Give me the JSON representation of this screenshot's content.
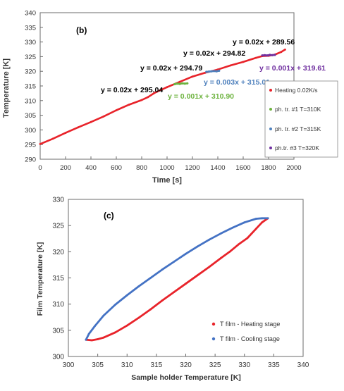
{
  "chart_data": [
    {
      "type": "line",
      "panel_label": "(b)",
      "xlabel": "Time [s]",
      "ylabel": "Temperature [K]",
      "xlim": [
        0,
        2000
      ],
      "ylim": [
        290,
        340
      ],
      "xticks": [
        0,
        200,
        400,
        600,
        800,
        1000,
        1200,
        1400,
        1600,
        1800,
        2000
      ],
      "yticks": [
        290,
        295,
        300,
        305,
        310,
        315,
        320,
        325,
        330,
        335,
        340
      ],
      "grid": false,
      "legend_position": "right",
      "series": [
        {
          "name": "Heating 0.02K/s",
          "color": "#e8232a",
          "x": [
            0,
            100,
            200,
            300,
            400,
            500,
            600,
            700,
            800,
            850,
            900,
            1000,
            1100,
            1200,
            1300,
            1400,
            1500,
            1600,
            1700,
            1750,
            1800,
            1850,
            1900,
            1930
          ],
          "y": [
            295.2,
            297.0,
            299.0,
            300.9,
            302.7,
            304.6,
            306.7,
            308.6,
            310.2,
            311.2,
            312.6,
            314.6,
            316.4,
            318.2,
            319.5,
            320.6,
            322.0,
            323.2,
            324.6,
            325.2,
            325.3,
            325.7,
            326.6,
            327.4
          ]
        },
        {
          "name": "ph. tr. #1 T=310K",
          "color": "#6db33f",
          "x": [
            1060,
            1080,
            1100,
            1120,
            1140,
            1160
          ],
          "y": [
            315.6,
            315.8,
            315.7,
            315.9,
            315.8,
            315.9
          ]
        },
        {
          "name": "ph. tr. #2 T=315K",
          "color": "#4f81bd",
          "x": [
            1310,
            1330,
            1350,
            1370,
            1390,
            1410
          ],
          "y": [
            319.8,
            319.9,
            320.0,
            320.1,
            320.0,
            320.2
          ]
        },
        {
          "name": "ph.tr. #3 T=320K",
          "color": "#7030a0",
          "x": [
            1750,
            1770,
            1790,
            1810,
            1830,
            1850
          ],
          "y": [
            325.4,
            325.5,
            325.4,
            325.6,
            325.5,
            325.6
          ]
        }
      ],
      "annotations": [
        {
          "text": "y = 0.02x + 295.04",
          "color": "#000000"
        },
        {
          "text": "y = 0.02x + 294.79",
          "color": "#000000"
        },
        {
          "text": "y = 0.02x + 294.82",
          "color": "#000000"
        },
        {
          "text": "y = 0.02x + 289.56",
          "color": "#000000"
        },
        {
          "text": "y = 0.001x + 310.90",
          "color": "#6db33f"
        },
        {
          "text": "y = 0.003x + 315.01",
          "color": "#4f81bd"
        },
        {
          "text": "y = 0.001x + 319.61",
          "color": "#7030a0"
        }
      ]
    },
    {
      "type": "line",
      "panel_label": "(c)",
      "xlabel": "Sample holder Temperature [K]",
      "ylabel": "Film Temperature [K]",
      "xlim": [
        300,
        340
      ],
      "ylim": [
        300,
        330
      ],
      "xticks": [
        300,
        305,
        310,
        315,
        320,
        325,
        330,
        335,
        340
      ],
      "yticks": [
        300,
        305,
        310,
        315,
        320,
        325,
        330
      ],
      "grid": false,
      "legend_position": "bottom-right",
      "series": [
        {
          "name": "T film - Heating stage",
          "color": "#e8232a",
          "x": [
            303.0,
            304.0,
            305.0,
            306.0,
            308.0,
            310.0,
            312.0,
            314.0,
            316.0,
            318.0,
            320.0,
            322.0,
            324.0,
            326.0,
            327.5,
            329.0,
            330.5,
            332.0,
            333.0,
            334.0
          ],
          "y": [
            303.2,
            303.1,
            303.3,
            303.6,
            304.6,
            305.9,
            307.4,
            309.0,
            310.7,
            312.3,
            313.9,
            315.5,
            317.1,
            318.8,
            320.0,
            321.4,
            322.6,
            324.4,
            325.6,
            326.4
          ]
        },
        {
          "name": "T film - Cooling stage",
          "color": "#4472c4",
          "x": [
            334.0,
            333.0,
            332.0,
            330.0,
            328.0,
            326.0,
            324.0,
            322.0,
            320.0,
            318.0,
            316.0,
            314.0,
            312.0,
            310.0,
            308.0,
            306.0,
            304.5,
            303.5,
            303.0
          ],
          "y": [
            326.4,
            326.4,
            326.3,
            325.6,
            324.6,
            323.5,
            322.3,
            321.0,
            319.6,
            318.1,
            316.6,
            315.0,
            313.4,
            311.7,
            309.9,
            307.8,
            305.8,
            304.3,
            303.2
          ]
        }
      ]
    }
  ]
}
